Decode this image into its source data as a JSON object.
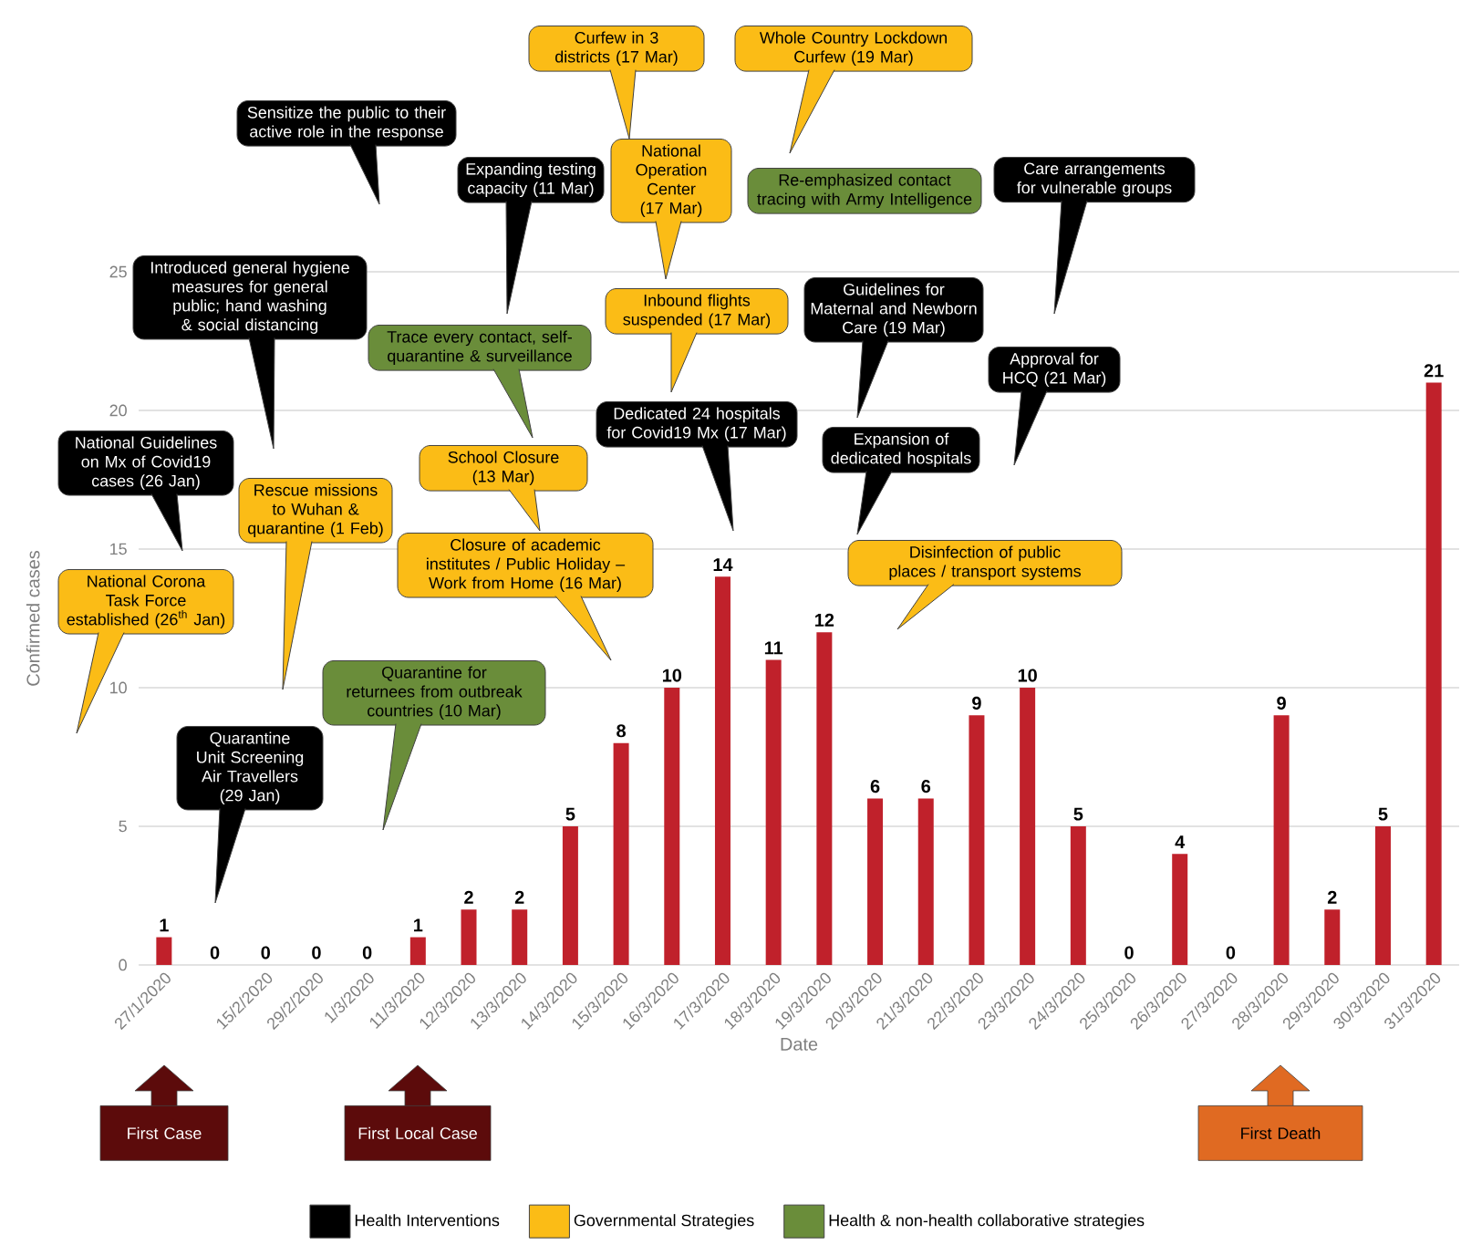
{
  "chart_data": {
    "type": "bar",
    "xlabel": "Date",
    "ylabel": "Confirmed cases",
    "categories": [
      "27/1/2020",
      null,
      "15/2/2020",
      "29/2/2020",
      "1/3/2020",
      "11/3/2020",
      "12/3/2020",
      "13/3/2020",
      "14/3/2020",
      "15/3/2020",
      "16/3/2020",
      "17/3/2020",
      "18/3/2020",
      "19/3/2020",
      "20/3/2020",
      "21/3/2020",
      "22/3/2020",
      "23/3/2020",
      "24/3/2020",
      "25/3/2020",
      "26/3/2020",
      "27/3/2020",
      "28/3/2020",
      "29/3/2020",
      "30/3/2020",
      "31/3/2020"
    ],
    "series": [
      {
        "color": "#c0212b",
        "values": [
          1,
          0,
          0,
          0,
          0,
          1,
          2,
          2,
          5,
          8,
          10,
          14,
          11,
          12,
          6,
          6,
          9,
          10,
          5,
          0,
          4,
          0,
          9,
          2,
          5,
          21
        ]
      },
      {
        "name": "Health Interventions",
        "color": "#000000",
        "values": [
          null,
          null,
          null,
          null,
          null,
          null,
          null,
          null,
          null,
          null,
          null,
          null,
          null,
          null,
          null,
          null,
          null,
          null,
          null,
          null,
          null,
          null,
          null,
          null,
          null,
          null
        ]
      },
      {
        "name": "Governmental Strategies",
        "color": "#fbbc16",
        "values": [
          null,
          null,
          null,
          null,
          null,
          null,
          null,
          null,
          null,
          null,
          null,
          null,
          null,
          null,
          null,
          null,
          null,
          null,
          null,
          null,
          null,
          null,
          null,
          null,
          null,
          null
        ]
      },
      {
        "name": "Health & non-health collaborative strategies",
        "color": "#6a8d3a",
        "values": [
          null,
          null,
          null,
          null,
          null,
          null,
          null,
          null,
          null,
          null,
          null,
          null,
          null,
          null,
          null,
          null,
          null,
          null,
          null,
          null,
          null,
          null,
          null,
          null,
          null,
          null
        ]
      }
    ],
    "ylim": [
      0,
      25
    ],
    "yticks": [
      0,
      5,
      10,
      15,
      20,
      25
    ],
    "grid": "y",
    "data_labels": true,
    "legend": "bottom",
    "annotations": [
      "Sensitize the public to their active role in the response",
      "Expanding testing capacity (11 Mar)",
      "Curfew in 3 districts (17 Mar)",
      "Whole Country Lockdown Curfew (19 Mar)",
      "National Operation Center (17 Mar)",
      "Re-emphasized contact tracing with Army Intelligence",
      "Introduced general hygiene measures for general public; hand washing & social distancing",
      "Trace every contact, self-quarantine & surveillance",
      "Inbound flights suspended (17 Mar)",
      "Care arrangements for vulnerable groups",
      "Guidelines for Maternal and Newborn Care (19 Mar)",
      "Approval for HCQ (21 Mar)",
      "Dedicated 24 hospitals for Covid19 Mx (17 Mar)",
      "Expansion of dedicated hospitals",
      "School Closure (13 Mar)",
      "Disinfection of public places / transport systems",
      "National Guidelines on Mx of Covid19 cases (26 Jan)",
      "Rescue missions to Wuhan & quarantine (1 Feb)",
      "Closure of academic institutes / Public Holiday – Work from Home (16 Mar)",
      "National Corona Task Force established (26$^{th}$ Jan)",
      "Quarantine Unit Screening Air Travellers (29 Jan)",
      "Quarantine for returnees from outbreak countries (10 Mar)",
      "First Case",
      "First Local Case",
      "First Death"
    ]
  }
}
